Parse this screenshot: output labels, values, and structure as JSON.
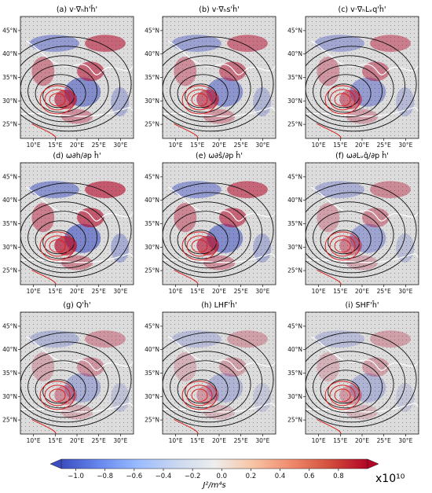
{
  "chart_data": [
    {
      "type": "heatmap",
      "title": "(a) v·∇ₕh'ĥ'",
      "x_ticks": [
        "10°E",
        "15°E",
        "20°E",
        "25°E",
        "30°E"
      ],
      "y_ticks": [
        "45°N",
        "40°N",
        "35°N",
        "30°N",
        "25°N"
      ],
      "xlim": [
        7,
        33
      ],
      "ylim": [
        22,
        48
      ],
      "grid": true
    },
    {
      "type": "heatmap",
      "title": "(b) v·∇ₕs'ĥ'",
      "x_ticks": [
        "10°E",
        "15°E",
        "20°E",
        "25°E",
        "30°E"
      ],
      "y_ticks": [
        "45°N",
        "40°N",
        "35°N",
        "30°N",
        "25°N"
      ],
      "xlim": [
        7,
        33
      ],
      "ylim": [
        22,
        48
      ],
      "grid": true
    },
    {
      "type": "heatmap",
      "title": "(c) v·∇ₕLᵥq'ĥ'",
      "x_ticks": [
        "10°E",
        "15°E",
        "20°E",
        "25°E",
        "30°E"
      ],
      "y_ticks": [
        "45°N",
        "40°N",
        "35°N",
        "30°N",
        "25°N"
      ],
      "xlim": [
        7,
        33
      ],
      "ylim": [
        22,
        48
      ],
      "grid": true
    },
    {
      "type": "heatmap",
      "title": "(d) ω∂h/∂p ĥ'",
      "x_ticks": [
        "10°E",
        "15°E",
        "20°E",
        "25°E",
        "30°E"
      ],
      "y_ticks": [
        "45°N",
        "40°N",
        "35°N",
        "30°N",
        "25°N"
      ],
      "xlim": [
        7,
        33
      ],
      "ylim": [
        22,
        48
      ],
      "grid": true
    },
    {
      "type": "heatmap",
      "title": "(e) ω∂ŝ/∂p ĥ'",
      "x_ticks": [
        "10°E",
        "15°E",
        "20°E",
        "25°E",
        "30°E"
      ],
      "y_ticks": [
        "45°N",
        "40°N",
        "35°N",
        "30°N",
        "25°N"
      ],
      "xlim": [
        7,
        33
      ],
      "ylim": [
        22,
        48
      ],
      "grid": true
    },
    {
      "type": "heatmap",
      "title": "(f) ω∂Lᵥq̂/∂p ĥ'",
      "x_ticks": [
        "10°E",
        "15°E",
        "20°E",
        "25°E",
        "30°E"
      ],
      "y_ticks": [
        "45°N",
        "40°N",
        "35°N",
        "30°N",
        "25°N"
      ],
      "xlim": [
        7,
        33
      ],
      "ylim": [
        22,
        48
      ],
      "grid": true
    },
    {
      "type": "heatmap",
      "title": "(g) Q'ĥ'",
      "x_ticks": [
        "10°E",
        "15°E",
        "20°E",
        "25°E",
        "30°E"
      ],
      "y_ticks": [
        "45°N",
        "40°N",
        "35°N",
        "30°N",
        "25°N"
      ],
      "xlim": [
        7,
        33
      ],
      "ylim": [
        22,
        48
      ],
      "grid": true
    },
    {
      "type": "heatmap",
      "title": "(h) LHF'ĥ'",
      "x_ticks": [
        "10°E",
        "15°E",
        "20°E",
        "25°E",
        "30°E"
      ],
      "y_ticks": [
        "45°N",
        "40°N",
        "35°N",
        "30°N",
        "25°N"
      ],
      "xlim": [
        7,
        33
      ],
      "ylim": [
        22,
        48
      ],
      "grid": true
    },
    {
      "type": "heatmap",
      "title": "(i) SHF'ĥ'",
      "x_ticks": [
        "10°E",
        "15°E",
        "20°E",
        "25°E",
        "30°E"
      ],
      "y_ticks": [
        "45°N",
        "40°N",
        "35°N",
        "30°N",
        "25°N"
      ],
      "xlim": [
        7,
        33
      ],
      "ylim": [
        22,
        48
      ],
      "grid": true
    }
  ],
  "colorbar": {
    "ticks": [
      "−1.0",
      "−0.8",
      "−0.6",
      "−0.4",
      "−0.2",
      "0.0",
      "0.2",
      "0.4",
      "0.6",
      "0.8"
    ],
    "range": [
      -1.1,
      1.0
    ],
    "label": "J²/m⁴s",
    "scale_text": "x10¹⁰",
    "colormap": [
      "#3b4cc0",
      "#6788ee",
      "#9abbff",
      "#c9d7f0",
      "#eeeeee",
      "#f7c4a5",
      "#f08a6c",
      "#d24f3d",
      "#b40426"
    ],
    "extend": "both"
  },
  "colors": {
    "positive": "#b40426",
    "negative": "#3b4cc0",
    "neutral": "#dcdcdc",
    "contour_black": "#111111",
    "contour_red": "#d61f1f",
    "coast": "#ffffff"
  }
}
